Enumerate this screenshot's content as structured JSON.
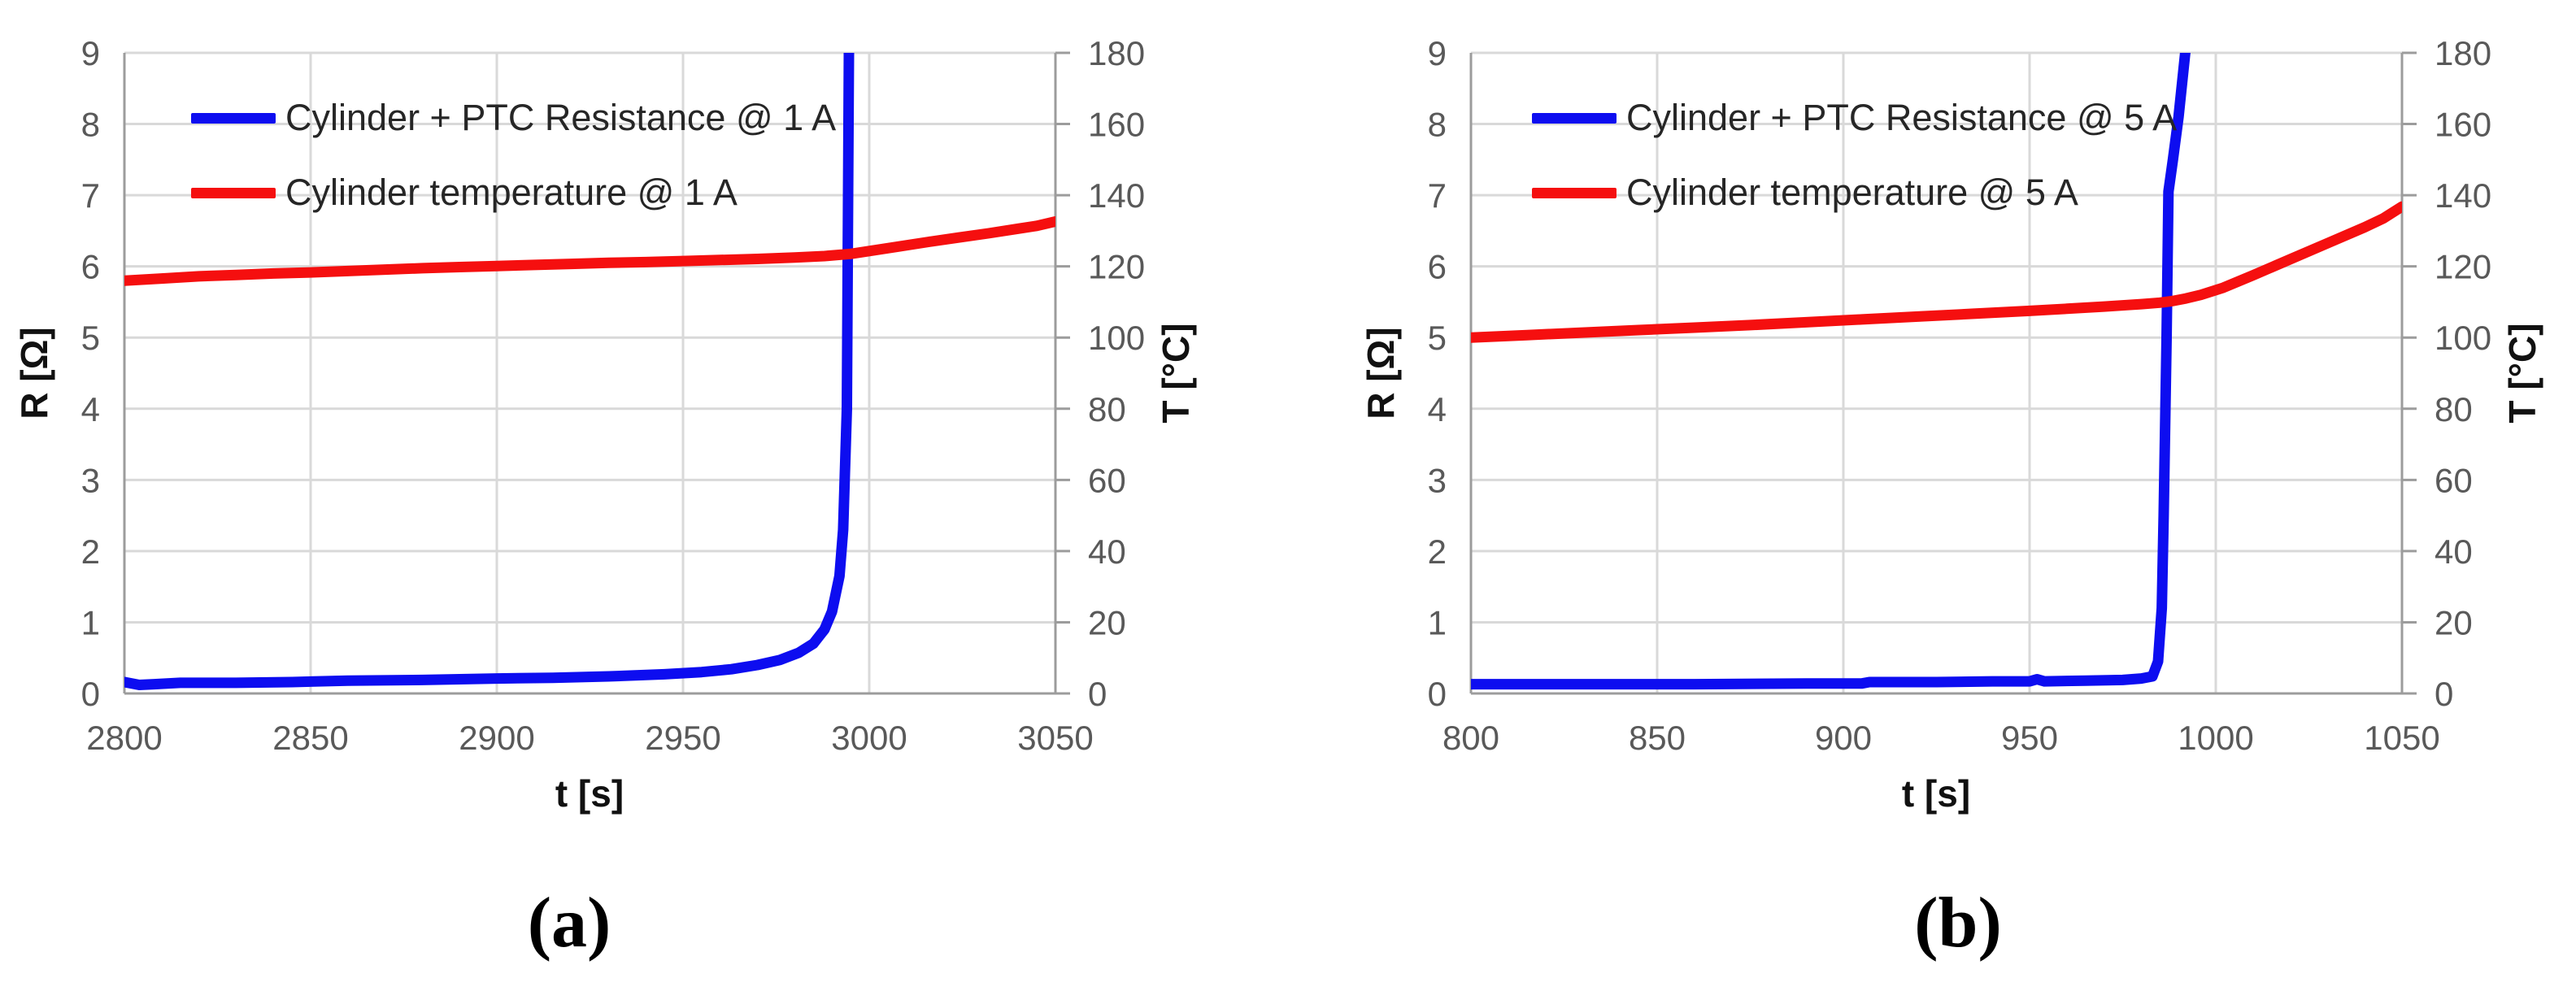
{
  "colors": {
    "resistance_line": "#0d0df0",
    "temperature_line": "#f50f0f",
    "gridline": "#d9d9d9",
    "axis_line": "#9c9c9c",
    "tick_text": "#595959",
    "axis_title_text": "#111111",
    "legend_text": "#262626",
    "background": "#ffffff"
  },
  "chart_data": [
    {
      "type": "line",
      "caption": "(a)",
      "grid": true,
      "legend_position": "top-left-inside",
      "x": {
        "label": "t [s]",
        "min": 2800,
        "max": 3050,
        "step": 50,
        "ticks": [
          2800,
          2850,
          2900,
          2950,
          3000,
          3050
        ]
      },
      "y_left": {
        "label": "R [Ω]",
        "min": 0,
        "max": 9,
        "step": 1,
        "ticks": [
          0,
          1,
          2,
          3,
          4,
          5,
          6,
          7,
          8,
          9
        ]
      },
      "y_right": {
        "label": "T [°C]",
        "min": 0,
        "max": 180,
        "step": 20,
        "ticks": [
          0,
          20,
          40,
          60,
          80,
          100,
          120,
          140,
          160,
          180
        ]
      },
      "series": [
        {
          "name": "Cylinder + PTC Resistance @ 1 A",
          "axis": "left",
          "color": "#0d0df0",
          "points": [
            [
              2800,
              0.16
            ],
            [
              2804,
              0.12
            ],
            [
              2808,
              0.13
            ],
            [
              2815,
              0.15
            ],
            [
              2830,
              0.15
            ],
            [
              2845,
              0.16
            ],
            [
              2860,
              0.18
            ],
            [
              2880,
              0.19
            ],
            [
              2900,
              0.21
            ],
            [
              2915,
              0.22
            ],
            [
              2930,
              0.24
            ],
            [
              2945,
              0.27
            ],
            [
              2955,
              0.3
            ],
            [
              2963,
              0.34
            ],
            [
              2970,
              0.4
            ],
            [
              2976,
              0.47
            ],
            [
              2981,
              0.57
            ],
            [
              2985,
              0.7
            ],
            [
              2988,
              0.9
            ],
            [
              2990,
              1.15
            ],
            [
              2992,
              1.65
            ],
            [
              2993,
              2.3
            ],
            [
              2994,
              4.0
            ],
            [
              2994.6,
              9.6
            ]
          ]
        },
        {
          "name": "Cylinder temperature @ 1 A",
          "axis": "right",
          "color": "#f50f0f",
          "points": [
            [
              2800,
              116.0
            ],
            [
              2810,
              116.6
            ],
            [
              2820,
              117.2
            ],
            [
              2830,
              117.6
            ],
            [
              2840,
              118.0
            ],
            [
              2850,
              118.3
            ],
            [
              2860,
              118.7
            ],
            [
              2870,
              119.1
            ],
            [
              2880,
              119.5
            ],
            [
              2890,
              119.8
            ],
            [
              2900,
              120.1
            ],
            [
              2910,
              120.4
            ],
            [
              2920,
              120.7
            ],
            [
              2930,
              121.0
            ],
            [
              2940,
              121.2
            ],
            [
              2950,
              121.5
            ],
            [
              2960,
              121.8
            ],
            [
              2970,
              122.1
            ],
            [
              2980,
              122.5
            ],
            [
              2988,
              122.9
            ],
            [
              2995,
              123.5
            ],
            [
              3000,
              124.3
            ],
            [
              3008,
              125.6
            ],
            [
              3016,
              126.9
            ],
            [
              3024,
              128.1
            ],
            [
              3032,
              129.3
            ],
            [
              3040,
              130.6
            ],
            [
              3045,
              131.4
            ],
            [
              3050,
              132.6
            ]
          ]
        }
      ]
    },
    {
      "type": "line",
      "caption": "(b)",
      "grid": true,
      "legend_position": "top-left-inside",
      "x": {
        "label": "t [s]",
        "min": 800,
        "max": 1050,
        "step": 50,
        "ticks": [
          800,
          850,
          900,
          950,
          1000,
          1050
        ]
      },
      "y_left": {
        "label": "R [Ω]",
        "min": 0,
        "max": 9,
        "step": 1,
        "ticks": [
          0,
          1,
          2,
          3,
          4,
          5,
          6,
          7,
          8,
          9
        ]
      },
      "y_right": {
        "label": "T [°C]",
        "min": 0,
        "max": 180,
        "step": 20,
        "ticks": [
          0,
          20,
          40,
          60,
          80,
          100,
          120,
          140,
          160,
          180
        ]
      },
      "series": [
        {
          "name": "Cylinder + PTC Resistance @ 5 A",
          "axis": "left",
          "color": "#0d0df0",
          "points": [
            [
              800,
              0.13
            ],
            [
              830,
              0.13
            ],
            [
              860,
              0.13
            ],
            [
              890,
              0.14
            ],
            [
              905,
              0.14
            ],
            [
              907,
              0.16
            ],
            [
              925,
              0.16
            ],
            [
              940,
              0.17
            ],
            [
              950,
              0.17
            ],
            [
              952,
              0.2
            ],
            [
              954,
              0.17
            ],
            [
              965,
              0.18
            ],
            [
              975,
              0.19
            ],
            [
              980,
              0.21
            ],
            [
              983,
              0.24
            ],
            [
              984.5,
              0.45
            ],
            [
              985.5,
              1.2
            ],
            [
              986,
              2.5
            ],
            [
              986.8,
              5.0
            ],
            [
              987.3,
              7.05
            ],
            [
              988.5,
              7.5
            ],
            [
              990,
              8.1
            ],
            [
              993,
              9.6
            ]
          ]
        },
        {
          "name": "Cylinder temperature @ 5 A",
          "axis": "right",
          "color": "#f50f0f",
          "points": [
            [
              800,
              100.0
            ],
            [
              815,
              100.7
            ],
            [
              830,
              101.4
            ],
            [
              845,
              102.1
            ],
            [
              860,
              102.8
            ],
            [
              875,
              103.5
            ],
            [
              890,
              104.3
            ],
            [
              905,
              105.1
            ],
            [
              920,
              105.9
            ],
            [
              935,
              106.7
            ],
            [
              950,
              107.5
            ],
            [
              960,
              108.1
            ],
            [
              970,
              108.7
            ],
            [
              980,
              109.4
            ],
            [
              985,
              109.8
            ],
            [
              988,
              110.2
            ],
            [
              992,
              111.0
            ],
            [
              996,
              112.0
            ],
            [
              1002,
              114.0
            ],
            [
              1010,
              117.5
            ],
            [
              1020,
              122.0
            ],
            [
              1030,
              126.5
            ],
            [
              1040,
              131.0
            ],
            [
              1045,
              133.5
            ],
            [
              1050,
              136.8
            ]
          ]
        }
      ]
    }
  ]
}
